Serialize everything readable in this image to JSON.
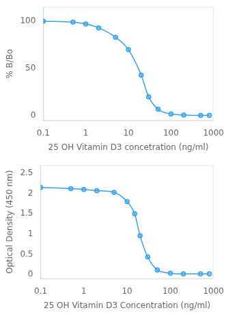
{
  "chart_data": [
    {
      "type": "scatter",
      "x_label": "25 OH Vitamin D3 concetration (ng/ml)",
      "y_label": "% B/Bo",
      "log": "x",
      "grid": false,
      "xlim": [
        0.1,
        1000
      ],
      "xticks": [
        0.1,
        1,
        10,
        100,
        1000
      ],
      "ylim": [
        -5,
        115
      ],
      "yticks": [
        0,
        50,
        100
      ],
      "x": [
        0.1,
        0.5,
        1.0,
        2.0,
        5.0,
        10.0,
        20.0,
        30.0,
        50.0,
        100.0,
        200.0,
        500.0,
        800.0
      ],
      "series": [
        {
          "values": [
            100,
            99,
            97,
            93,
            83,
            70,
            43,
            20,
            7,
            2,
            1,
            0.5,
            0.5
          ],
          "marker": "circle",
          "line_style": "solid"
        }
      ]
    },
    {
      "type": "scatter",
      "x_label": "25 OH Vitamin D3 Concentration (ng/ml)",
      "y_label": "Optical Density (450 nm)",
      "log": "x",
      "grid": false,
      "xlim": [
        0.1,
        1000
      ],
      "xticks": [
        0.1,
        1,
        10,
        100,
        1000
      ],
      "ylim": [
        -0.1,
        2.7
      ],
      "yticks": [
        0.0,
        0.5,
        1.0,
        1.5,
        2.0,
        2.5
      ],
      "x": [
        0.1,
        0.5,
        1.0,
        2.0,
        5.0,
        10.0,
        15.0,
        20.0,
        30.0,
        50.0,
        100.0,
        200.0,
        500.0,
        800.0
      ],
      "series": [
        {
          "values": [
            2.15,
            2.12,
            2.1,
            2.07,
            2.03,
            1.8,
            1.5,
            0.96,
            0.44,
            0.12,
            0.04,
            0.02,
            0.02,
            0.02
          ],
          "marker": "circle",
          "line_style": "solid"
        }
      ]
    }
  ]
}
